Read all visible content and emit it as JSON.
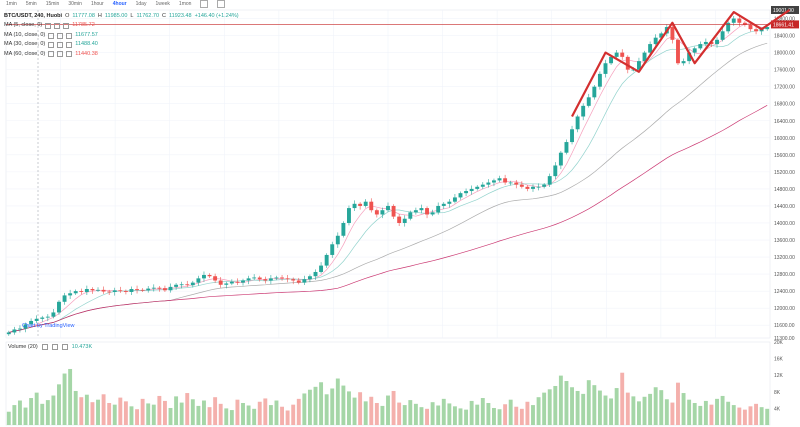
{
  "toolbar": {
    "timeframes": [
      "1min",
      "5min",
      "15min",
      "30min",
      "1hour",
      "4hour",
      "1day",
      "1week",
      "1mon"
    ],
    "active": "4hour"
  },
  "legend": {
    "symbol": "BTC/USDT, 240, Huobi",
    "ohlc": [
      {
        "label": "O",
        "value": "11777.08"
      },
      {
        "label": "H",
        "value": "11985.00"
      },
      {
        "label": "L",
        "value": "11762.70"
      },
      {
        "label": "C",
        "value": "11923.48"
      }
    ],
    "change": "+146.40 (+1.24%)",
    "ma": [
      {
        "label": "MA (5, close, 0)",
        "value": "11785.72"
      },
      {
        "label": "MA (10, close, 0)",
        "value": "11677.57"
      },
      {
        "label": "MA (30, close, 0)",
        "value": "11488.40"
      },
      {
        "label": "MA (60, close, 0)",
        "value": "11440.38"
      }
    ],
    "volume_label": "Volume (20)",
    "volume_value": "10.473K"
  },
  "attribution": "Chart by TradingView",
  "colors": {
    "up": "#26a69a",
    "down": "#ef5350",
    "annotation": "#d32f2f",
    "hline": "#c62828"
  },
  "chart_data": {
    "type": "candlestick",
    "ylim": [
      11300,
      19000
    ],
    "y_ticks": [
      11300,
      11600,
      12000,
      12400,
      12800,
      13200,
      13600,
      14000,
      14400,
      14800,
      15200,
      15600,
      16000,
      16400,
      16800,
      17200,
      17600,
      18000,
      18400,
      18800
    ],
    "y_tick_labels": [
      "11300.00",
      "11600.00",
      "12000.00",
      "12400.00",
      "12800.00",
      "13200.00",
      "13600.00",
      "14000.00",
      "14400.00",
      "14800.00",
      "15200.00",
      "15600.00",
      "16000.00",
      "16400.00",
      "16800.00",
      "17200.00",
      "17600.00",
      "18000.00",
      "18400.00",
      "18800.00"
    ],
    "price_tag": "18661.41",
    "current_price_tag": "19001.00",
    "close": [
      11430,
      11500,
      11520,
      11620,
      11700,
      11750,
      11780,
      11800,
      11900,
      12150,
      12300,
      12350,
      12400,
      12380,
      12450,
      12420,
      12430,
      12390,
      12380,
      12420,
      12400,
      12380,
      12450,
      12430,
      12420,
      12460,
      12480,
      12470,
      12420,
      12500,
      12550,
      12560,
      12540,
      12600,
      12700,
      12780,
      12750,
      12650,
      12550,
      12580,
      12620,
      12600,
      12650,
      12700,
      12720,
      12680,
      12650,
      12700,
      12720,
      12700,
      12680,
      12650,
      12600,
      12680,
      12750,
      12850,
      13000,
      13250,
      13500,
      13700,
      14000,
      14350,
      14450,
      14400,
      14500,
      14300,
      14200,
      14300,
      14400,
      14150,
      14000,
      14100,
      14250,
      14300,
      14350,
      14200,
      14250,
      14400,
      14450,
      14500,
      14600,
      14700,
      14750,
      14800,
      14850,
      14900,
      14950,
      15000,
      15050,
      14950,
      14950,
      14900,
      14850,
      14800,
      14850,
      14850,
      14900,
      15100,
      15350,
      15650,
      15900,
      16200,
      16500,
      16750,
      16950,
      17200,
      17500,
      17750,
      17900,
      18000,
      17900,
      17600,
      17600,
      17800,
      18000,
      18200,
      18350,
      18450,
      18600,
      18300,
      17750,
      17800,
      18000,
      18100,
      18200,
      18250,
      18200,
      18300,
      18500,
      18700,
      18800,
      18700,
      18650,
      18550,
      18500,
      18550,
      18600
    ],
    "volume": [
      3.2,
      4.8,
      5.9,
      4.2,
      6.5,
      7.8,
      5.1,
      6.0,
      7.1,
      9.8,
      12.4,
      13.5,
      8.2,
      6.7,
      7.3,
      5.5,
      6.1,
      7.4,
      5.3,
      4.9,
      6.6,
      5.7,
      4.5,
      3.8,
      6.3,
      5.2,
      4.9,
      7.0,
      5.8,
      4.1,
      6.9,
      5.4,
      7.7,
      6.2,
      4.6,
      5.9,
      4.3,
      6.7,
      5.1,
      4.0,
      3.6,
      6.1,
      5.3,
      4.7,
      3.9,
      5.6,
      6.4,
      4.8,
      5.9,
      4.4,
      3.5,
      4.9,
      6.3,
      7.6,
      8.5,
      9.2,
      10.3,
      7.4,
      8.8,
      11.2,
      9.5,
      8.1,
      6.6,
      7.9,
      5.7,
      6.8,
      5.3,
      4.6,
      7.1,
      8.2,
      5.4,
      4.8,
      6.0,
      5.1,
      4.3,
      3.9,
      5.5,
      4.7,
      6.3,
      5.2,
      4.5,
      4.0,
      3.7,
      5.8,
      4.9,
      6.5,
      5.3,
      4.1,
      3.8,
      5.0,
      6.1,
      4.4,
      3.9,
      5.6,
      4.8,
      6.7,
      7.8,
      8.6,
      9.4,
      11.9,
      10.6,
      9.1,
      8.2,
      7.5,
      10.8,
      9.6,
      8.3,
      7.1,
      6.4,
      8.9,
      12.6,
      7.8,
      6.9,
      5.7,
      6.8,
      7.5,
      9.1,
      8.4,
      6.2,
      5.4,
      10.2,
      7.7,
      6.1,
      5.3,
      4.6,
      5.8,
      4.9,
      6.3,
      7.0,
      5.6,
      4.8,
      4.2,
      3.7,
      4.5,
      5.1,
      4.3,
      3.9
    ],
    "volume_ylim": [
      0,
      20
    ],
    "volume_ticks": [
      4,
      8,
      12,
      16,
      20
    ],
    "volume_tick_labels": [
      "4K",
      "8K",
      "12K",
      "16K",
      "20K"
    ],
    "hline": 18661.41,
    "annotation_zigzag": [
      {
        "x": 101,
        "y": 16500
      },
      {
        "x": 107,
        "y": 18000
      },
      {
        "x": 113,
        "y": 17550
      },
      {
        "x": 119,
        "y": 18700
      },
      {
        "x": 123,
        "y": 17750
      },
      {
        "x": 130,
        "y": 18950
      },
      {
        "x": 135,
        "y": 18550
      },
      {
        "x": 140,
        "y": 19000
      }
    ]
  }
}
